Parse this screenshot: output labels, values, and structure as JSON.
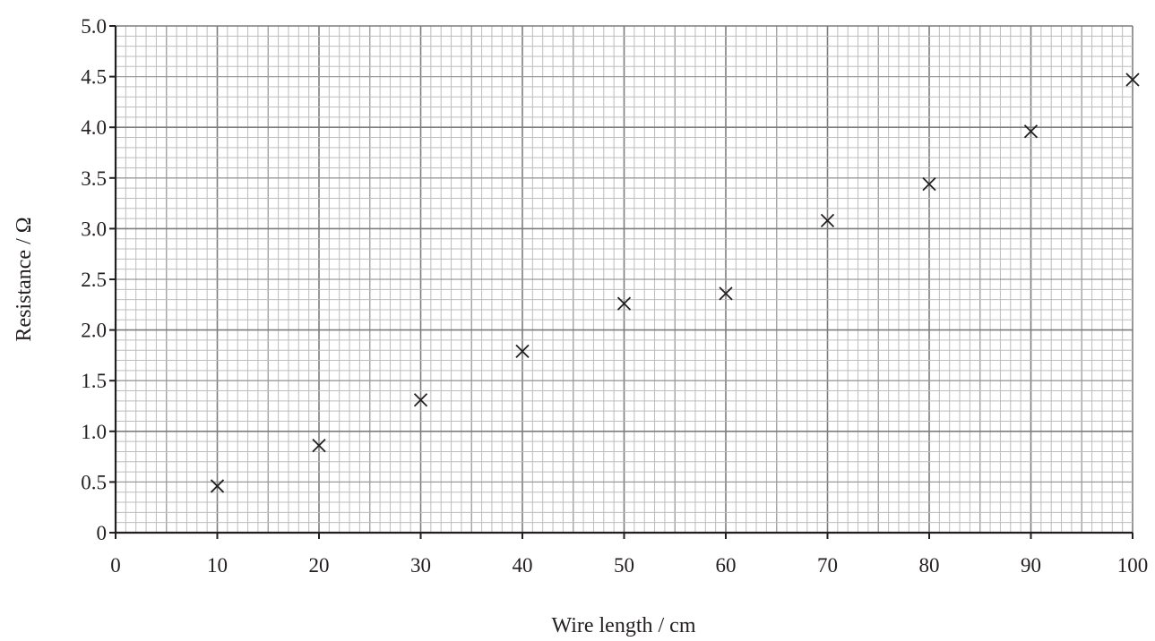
{
  "chart_data": {
    "type": "scatter",
    "title": "",
    "xlabel": "Wire length / cm",
    "ylabel": "Resistance / Ω",
    "xlim": [
      0,
      100
    ],
    "ylim": [
      0,
      5.0
    ],
    "x_ticks": [
      "0",
      "10",
      "20",
      "30",
      "40",
      "50",
      "60",
      "70",
      "80",
      "90",
      "100"
    ],
    "y_ticks": [
      "0",
      "0.5",
      "1.0",
      "1.5",
      "2.0",
      "2.5",
      "3.0",
      "3.5",
      "4.0",
      "4.5",
      "5.0"
    ],
    "grid": true,
    "marker": "cross",
    "x": [
      10,
      20,
      30,
      40,
      50,
      60,
      70,
      80,
      90,
      100
    ],
    "y": [
      0.46,
      0.86,
      1.31,
      1.79,
      2.26,
      2.36,
      3.08,
      3.44,
      3.96,
      4.47
    ]
  }
}
